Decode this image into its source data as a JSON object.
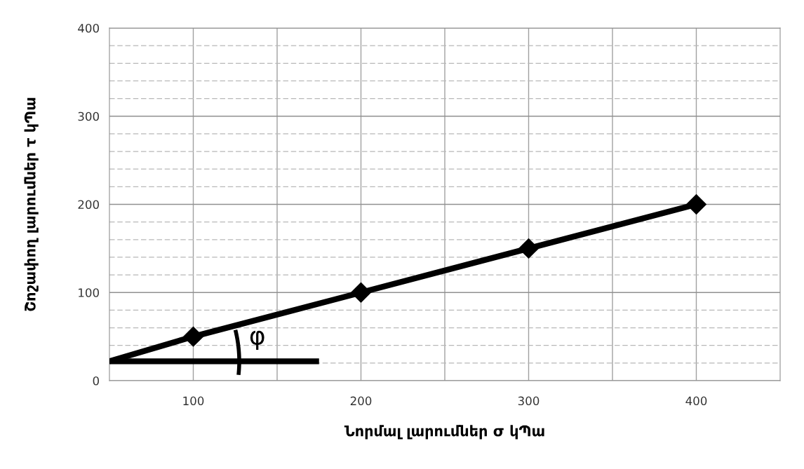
{
  "chart_data": {
    "type": "line",
    "xlabel": "Նորմալ լարումներ σ կՊա",
    "ylabel": "Շոշափող լարումներ τ կՊա",
    "x": [
      100,
      200,
      300,
      400
    ],
    "series": [
      {
        "color": "#000000",
        "values": [
          50,
          100,
          150,
          200
        ],
        "marker": "diamond"
      },
      {
        "type": "line",
        "color": "#000000",
        "x": [
          50,
          100
        ],
        "values": [
          22,
          50
        ],
        "marker": "none"
      },
      {
        "type": "line",
        "color": "#000000",
        "x": [
          50,
          175
        ],
        "values": [
          22,
          22
        ],
        "marker": "none"
      }
    ],
    "annotations": [
      "φ"
    ],
    "xlim": [
      50,
      450
    ],
    "xticks": [
      {
        "value": 100,
        "label": "100"
      },
      {
        "value": 150,
        "label": null
      },
      {
        "value": 200,
        "label": "200"
      },
      {
        "value": 250,
        "label": null
      },
      {
        "value": 300,
        "label": "300"
      },
      {
        "value": 350,
        "label": null
      },
      {
        "value": 400,
        "label": "400"
      }
    ],
    "ylim": [
      0,
      400
    ],
    "yticks": [
      0,
      {
        "value": 20,
        "label": null
      },
      {
        "value": 40,
        "label": null
      },
      {
        "value": 60,
        "label": null
      },
      {
        "value": 80,
        "label": null
      },
      100,
      {
        "value": 120,
        "label": null
      },
      {
        "value": 140,
        "label": null
      },
      {
        "value": 160,
        "label": null
      },
      {
        "value": 180,
        "label": null
      },
      200,
      {
        "value": 220,
        "label": null
      },
      {
        "value": 240,
        "label": null
      },
      {
        "value": 260,
        "label": null
      },
      {
        "value": 280,
        "label": null
      },
      300,
      {
        "value": 320,
        "label": null
      },
      {
        "value": 340,
        "label": null
      },
      {
        "value": 360,
        "label": null
      },
      {
        "value": 380,
        "label": null
      },
      400
    ],
    "grid": true
  }
}
